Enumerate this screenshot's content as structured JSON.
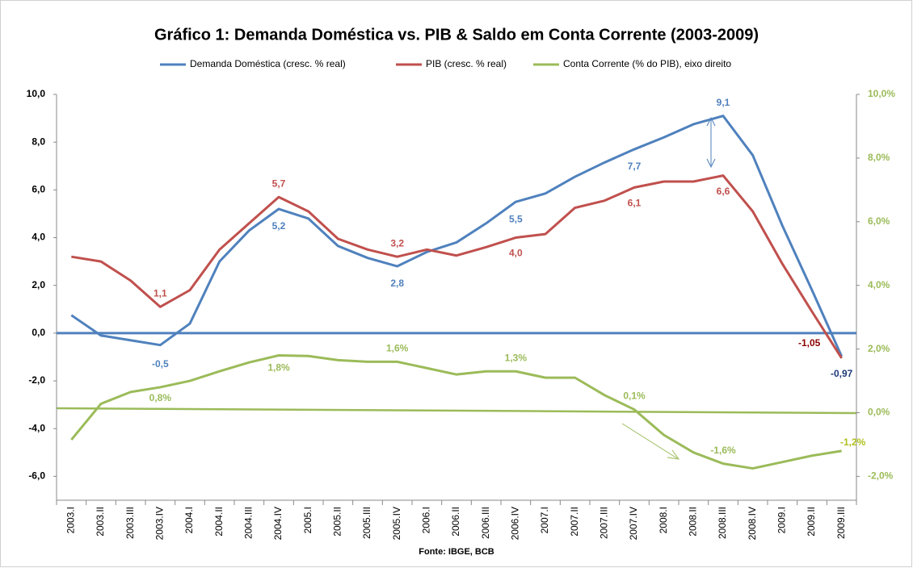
{
  "chart_data": {
    "type": "line",
    "title": "Gráfico 1: Demanda Doméstica vs. PIB & Saldo em Conta Corrente (2003-2009)",
    "source": "Fonte: IBGE, BCB",
    "categories": [
      "2003.I",
      "2003.II",
      "2003.III",
      "2003.IV",
      "2004.I",
      "2004.II",
      "2004.III",
      "2004.IV",
      "2005.I",
      "2005.II",
      "2005.III",
      "2005.IV",
      "2006.I",
      "2006.II",
      "2006.III",
      "2006.IV",
      "2007.I",
      "2007.II",
      "2007.III",
      "2007.IV",
      "2008.I",
      "2008.II",
      "2008.III",
      "2008.IV",
      "2009.I",
      "2009.II",
      "2009.III"
    ],
    "series": [
      {
        "name": "Demanda Doméstica  (cresc. % real)",
        "color": "#4f81bd",
        "values": [
          0.75,
          -0.1,
          -0.3,
          -0.5,
          0.4,
          3.0,
          4.3,
          5.2,
          4.8,
          3.65,
          3.15,
          2.8,
          3.4,
          3.8,
          4.6,
          5.5,
          5.85,
          6.55,
          7.15,
          7.7,
          8.2,
          8.75,
          9.1,
          7.45,
          4.5,
          1.8,
          -0.97
        ],
        "value_labels": [
          null,
          null,
          null,
          "-0,5",
          null,
          null,
          null,
          "5,2",
          null,
          null,
          null,
          "2,8",
          null,
          null,
          null,
          "5,5",
          null,
          null,
          null,
          "7,7",
          null,
          null,
          "9,1",
          null,
          null,
          null,
          "-0,97"
        ]
      },
      {
        "name": "PIB (cresc. % real)",
        "color": "#c0504d",
        "values": [
          3.2,
          3.0,
          2.2,
          1.1,
          1.8,
          3.5,
          4.6,
          5.7,
          5.1,
          3.95,
          3.5,
          3.2,
          3.5,
          3.25,
          3.6,
          4.0,
          4.15,
          5.25,
          5.55,
          6.1,
          6.35,
          6.35,
          6.6,
          5.1,
          2.9,
          0.9,
          -1.05
        ],
        "value_labels": [
          null,
          null,
          null,
          "1,1",
          null,
          null,
          null,
          "5,7",
          null,
          null,
          null,
          "3,2",
          null,
          null,
          null,
          "4,0",
          null,
          null,
          null,
          "6,1",
          null,
          null,
          "6,6",
          null,
          null,
          null,
          "-1,05"
        ]
      },
      {
        "name": "Conta Corrente (% do PIB), eixo direito",
        "color": "#9bbb59",
        "axis": "y2",
        "values": [
          -0.85,
          0.28,
          0.65,
          0.8,
          1.0,
          1.3,
          1.58,
          1.8,
          1.78,
          1.65,
          1.6,
          1.6,
          1.4,
          1.2,
          1.3,
          1.3,
          1.1,
          1.1,
          0.55,
          0.1,
          -0.7,
          -1.25,
          -1.6,
          -1.75,
          -1.55,
          -1.35,
          -1.2
        ],
        "value_labels": [
          null,
          null,
          null,
          "0,8%",
          null,
          null,
          null,
          "1,8%",
          null,
          null,
          null,
          "1,6%",
          null,
          null,
          null,
          "1,3%",
          null,
          null,
          null,
          "0,1%",
          null,
          null,
          "-1,6%",
          null,
          null,
          null,
          "-1,2%"
        ]
      }
    ],
    "ylim": [
      -7,
      10
    ],
    "yticks": [
      {
        "value": 10,
        "label": "10,0"
      },
      {
        "value": 8,
        "label": "8,0"
      },
      {
        "value": 6,
        "label": "6,0"
      },
      {
        "value": 4,
        "label": "4,0"
      },
      {
        "value": 2,
        "label": "2,0"
      },
      {
        "value": 0,
        "label": "0,0"
      },
      {
        "value": -2,
        "label": "-2,0"
      },
      {
        "value": -4,
        "label": "-4,0"
      },
      {
        "value": -6,
        "label": "-6,0"
      }
    ],
    "y2lim": [
      -2.75,
      10
    ],
    "y2ticks": [
      {
        "value": 10,
        "label": "10,0%"
      },
      {
        "value": 8,
        "label": "8,0%"
      },
      {
        "value": 6,
        "label": "6,0%"
      },
      {
        "value": 4,
        "label": "4,0%"
      },
      {
        "value": 2,
        "label": "2,0%"
      },
      {
        "value": 0,
        "label": "0,0%"
      },
      {
        "value": -2,
        "label": "-2,0%"
      }
    ],
    "legend": "top",
    "grid": false
  }
}
